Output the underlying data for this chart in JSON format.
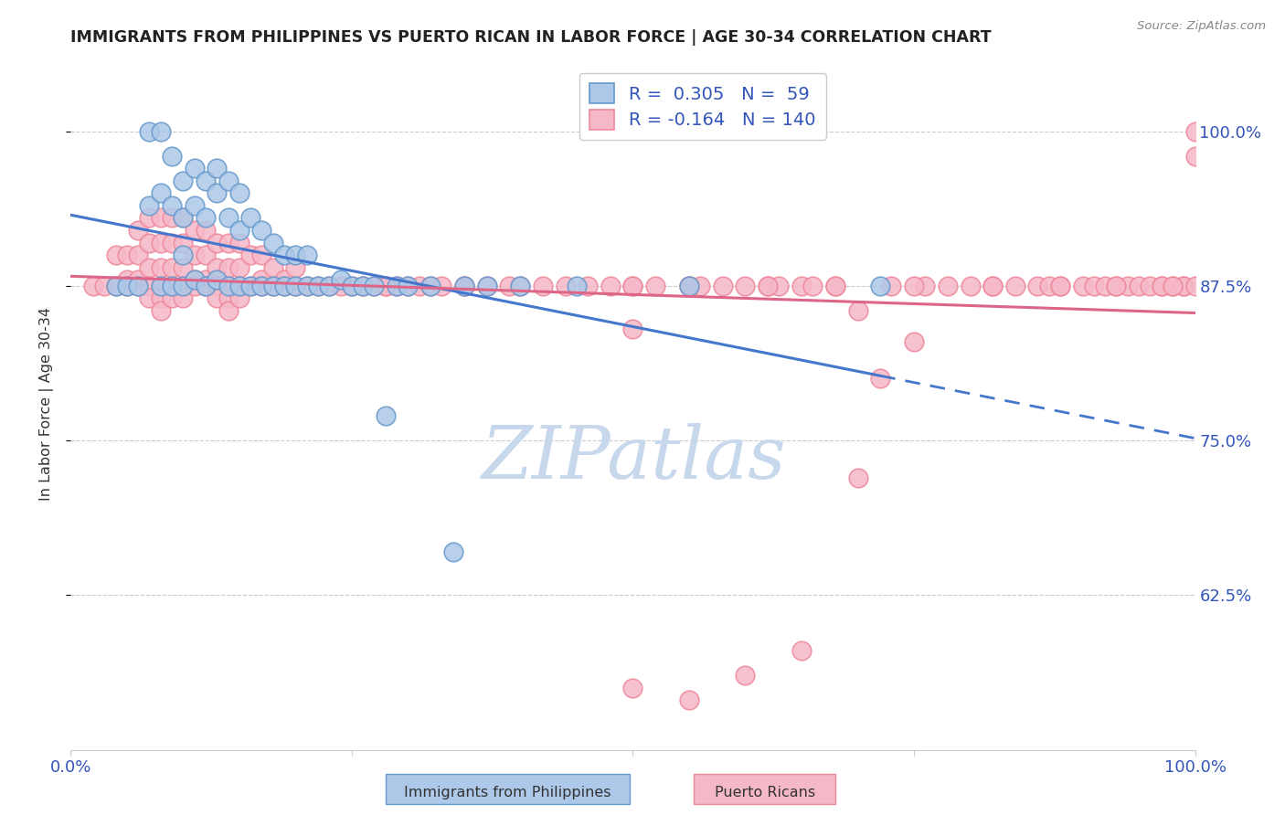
{
  "title": "IMMIGRANTS FROM PHILIPPINES VS PUERTO RICAN IN LABOR FORCE | AGE 30-34 CORRELATION CHART",
  "source": "Source: ZipAtlas.com",
  "ylabel": "In Labor Force | Age 30-34",
  "xlim": [
    0.0,
    1.0
  ],
  "ylim": [
    0.5,
    1.06
  ],
  "ytick_positions": [
    0.625,
    0.75,
    0.875,
    1.0
  ],
  "ytick_labels": [
    "62.5%",
    "75.0%",
    "87.5%",
    "100.0%"
  ],
  "philippines_r": 0.305,
  "philippines_n": 59,
  "puertorico_r": -0.164,
  "puertorico_n": 140,
  "philippines_fill": "#adc8e8",
  "puertorico_fill": "#f5b8c8",
  "philippines_edge": "#6699cc",
  "puertorico_edge": "#ee8899",
  "philippines_line_color": "#4477cc",
  "puertorico_line_color": "#dd6688",
  "background_color": "#ffffff",
  "grid_color": "#cccccc",
  "title_color": "#222222",
  "axis_label_color": "#333333",
  "tick_label_color": "#3355bb",
  "watermark_color": "#c8d8ec",
  "legend_r1_color": "#2255bb",
  "legend_n1_color": "#2255bb",
  "legend_r2_color": "#2255bb",
  "legend_n2_color": "#2255bb",
  "phil_x": [
    0.04,
    0.05,
    0.06,
    0.07,
    0.07,
    0.08,
    0.08,
    0.08,
    0.09,
    0.09,
    0.09,
    0.1,
    0.1,
    0.1,
    0.1,
    0.11,
    0.11,
    0.11,
    0.12,
    0.12,
    0.12,
    0.13,
    0.13,
    0.13,
    0.14,
    0.14,
    0.14,
    0.15,
    0.15,
    0.15,
    0.16,
    0.16,
    0.17,
    0.17,
    0.18,
    0.18,
    0.19,
    0.19,
    0.2,
    0.2,
    0.21,
    0.21,
    0.22,
    0.23,
    0.24,
    0.25,
    0.26,
    0.27,
    0.28,
    0.29,
    0.3,
    0.32,
    0.34,
    0.35,
    0.37,
    0.4,
    0.45,
    0.55,
    0.72
  ],
  "phil_y": [
    0.875,
    0.875,
    0.875,
    1.0,
    0.94,
    1.0,
    0.95,
    0.875,
    0.98,
    0.94,
    0.875,
    0.96,
    0.93,
    0.9,
    0.875,
    0.97,
    0.94,
    0.88,
    0.96,
    0.93,
    0.875,
    0.97,
    0.95,
    0.88,
    0.96,
    0.93,
    0.875,
    0.95,
    0.92,
    0.875,
    0.93,
    0.875,
    0.92,
    0.875,
    0.91,
    0.875,
    0.9,
    0.875,
    0.9,
    0.875,
    0.9,
    0.875,
    0.875,
    0.875,
    0.88,
    0.875,
    0.875,
    0.875,
    0.77,
    0.875,
    0.875,
    0.875,
    0.66,
    0.875,
    0.875,
    0.875,
    0.875,
    0.875,
    0.875
  ],
  "pr_x": [
    0.02,
    0.03,
    0.04,
    0.04,
    0.05,
    0.05,
    0.05,
    0.06,
    0.06,
    0.06,
    0.06,
    0.07,
    0.07,
    0.07,
    0.07,
    0.07,
    0.08,
    0.08,
    0.08,
    0.08,
    0.08,
    0.08,
    0.09,
    0.09,
    0.09,
    0.09,
    0.09,
    0.1,
    0.1,
    0.1,
    0.1,
    0.1,
    0.11,
    0.11,
    0.11,
    0.11,
    0.12,
    0.12,
    0.12,
    0.12,
    0.13,
    0.13,
    0.13,
    0.13,
    0.14,
    0.14,
    0.14,
    0.14,
    0.14,
    0.15,
    0.15,
    0.15,
    0.15,
    0.16,
    0.16,
    0.17,
    0.17,
    0.17,
    0.18,
    0.18,
    0.19,
    0.19,
    0.2,
    0.2,
    0.21,
    0.22,
    0.23,
    0.24,
    0.25,
    0.26,
    0.27,
    0.28,
    0.29,
    0.3,
    0.31,
    0.32,
    0.33,
    0.35,
    0.37,
    0.39,
    0.4,
    0.42,
    0.44,
    0.46,
    0.48,
    0.5,
    0.5,
    0.52,
    0.55,
    0.56,
    0.58,
    0.6,
    0.62,
    0.63,
    0.65,
    0.66,
    0.68,
    0.7,
    0.72,
    0.73,
    0.75,
    0.76,
    0.78,
    0.8,
    0.82,
    0.84,
    0.86,
    0.87,
    0.88,
    0.9,
    0.91,
    0.92,
    0.93,
    0.94,
    0.95,
    0.96,
    0.97,
    0.98,
    0.99,
    0.99,
    1.0,
    1.0,
    0.35,
    0.28,
    0.5,
    0.55,
    0.62,
    0.68,
    0.75,
    0.82,
    0.88,
    0.93,
    0.97,
    0.98,
    1.0,
    0.5,
    0.55,
    0.6,
    0.65,
    0.7
  ],
  "pr_y": [
    0.875,
    0.875,
    0.9,
    0.875,
    0.9,
    0.88,
    0.875,
    0.92,
    0.9,
    0.88,
    0.875,
    0.93,
    0.91,
    0.89,
    0.875,
    0.865,
    0.93,
    0.91,
    0.89,
    0.875,
    0.865,
    0.855,
    0.93,
    0.91,
    0.89,
    0.875,
    0.865,
    0.93,
    0.91,
    0.89,
    0.875,
    0.865,
    0.92,
    0.9,
    0.88,
    0.875,
    0.92,
    0.9,
    0.88,
    0.875,
    0.91,
    0.89,
    0.875,
    0.865,
    0.91,
    0.89,
    0.875,
    0.865,
    0.855,
    0.91,
    0.89,
    0.875,
    0.865,
    0.9,
    0.875,
    0.9,
    0.88,
    0.875,
    0.89,
    0.875,
    0.88,
    0.875,
    0.89,
    0.875,
    0.875,
    0.875,
    0.875,
    0.875,
    0.875,
    0.875,
    0.875,
    0.875,
    0.875,
    0.875,
    0.875,
    0.875,
    0.875,
    0.875,
    0.875,
    0.875,
    0.875,
    0.875,
    0.875,
    0.875,
    0.875,
    0.875,
    0.84,
    0.875,
    0.875,
    0.875,
    0.875,
    0.875,
    0.875,
    0.875,
    0.875,
    0.875,
    0.875,
    0.855,
    0.8,
    0.875,
    0.83,
    0.875,
    0.875,
    0.875,
    0.875,
    0.875,
    0.875,
    0.875,
    0.875,
    0.875,
    0.875,
    0.875,
    0.875,
    0.875,
    0.875,
    0.875,
    0.875,
    0.875,
    0.875,
    0.875,
    1.0,
    0.98,
    0.875,
    0.875,
    0.875,
    0.875,
    0.875,
    0.875,
    0.875,
    0.875,
    0.875,
    0.875,
    0.875,
    0.875,
    0.875,
    0.55,
    0.54,
    0.56,
    0.58,
    0.72
  ]
}
